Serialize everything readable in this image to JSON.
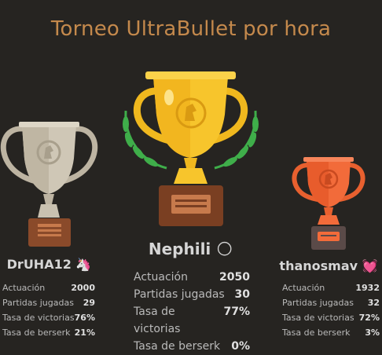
{
  "title": "Torneo UltraBullet por hora",
  "labels": {
    "rating": "Actuación",
    "games": "Partidas jugadas",
    "winrate": "Tasa de victorias",
    "berserk": "Tasa de berserk"
  },
  "podium": [
    {
      "place": 2,
      "name": "DrUHA12",
      "badge": "🦄",
      "rating": "2000",
      "games": "29",
      "winrate": "76%",
      "berserk": "21%"
    },
    {
      "place": 1,
      "name": "Nephili",
      "badge": "🌕",
      "rating": "2050",
      "games": "30",
      "winrate": "77%",
      "berserk": "0%"
    },
    {
      "place": 3,
      "name": "thanosmav",
      "badge": "💓",
      "rating": "1932",
      "games": "32",
      "winrate": "72%",
      "berserk": "3%"
    }
  ],
  "colors": {
    "background": "#262421",
    "title": "#c4894c",
    "gold": "#f5c426",
    "silver": "#c9c1b0",
    "bronze": "#f26b3a"
  }
}
